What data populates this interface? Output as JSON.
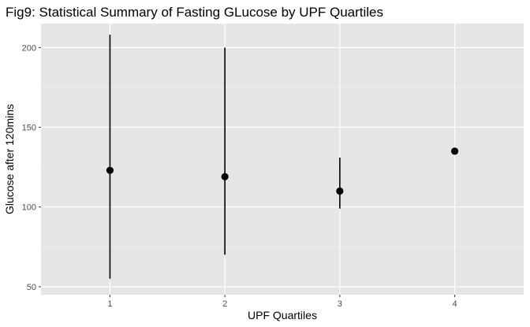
{
  "chart_data": {
    "type": "scatter",
    "title": "Fig9: Statistical Summary of Fasting GLucose by UPF Quartiles",
    "xlabel": "UPF Quartiles",
    "ylabel": "Glucose after 120mins",
    "categories": [
      "1",
      "2",
      "3",
      "4"
    ],
    "points": [
      {
        "x": "1",
        "y": 123,
        "ymin": 55,
        "ymax": 208
      },
      {
        "x": "2",
        "y": 119,
        "ymin": 70,
        "ymax": 200
      },
      {
        "x": "3",
        "y": 110,
        "ymin": 99,
        "ymax": 131
      },
      {
        "x": "4",
        "y": 135,
        "ymin": null,
        "ymax": null
      }
    ],
    "yticks": [
      50,
      100,
      150,
      200
    ],
    "ylim": [
      45,
      215
    ],
    "grid": true,
    "legend": "none",
    "colors": {
      "panel_background": "#e5e5e5",
      "grid_major": "#ffffff",
      "grid_minor": "#f2f2f2",
      "marker": "#000000",
      "tick_label": "#4d4d4d",
      "tick_mark": "#333333"
    }
  }
}
